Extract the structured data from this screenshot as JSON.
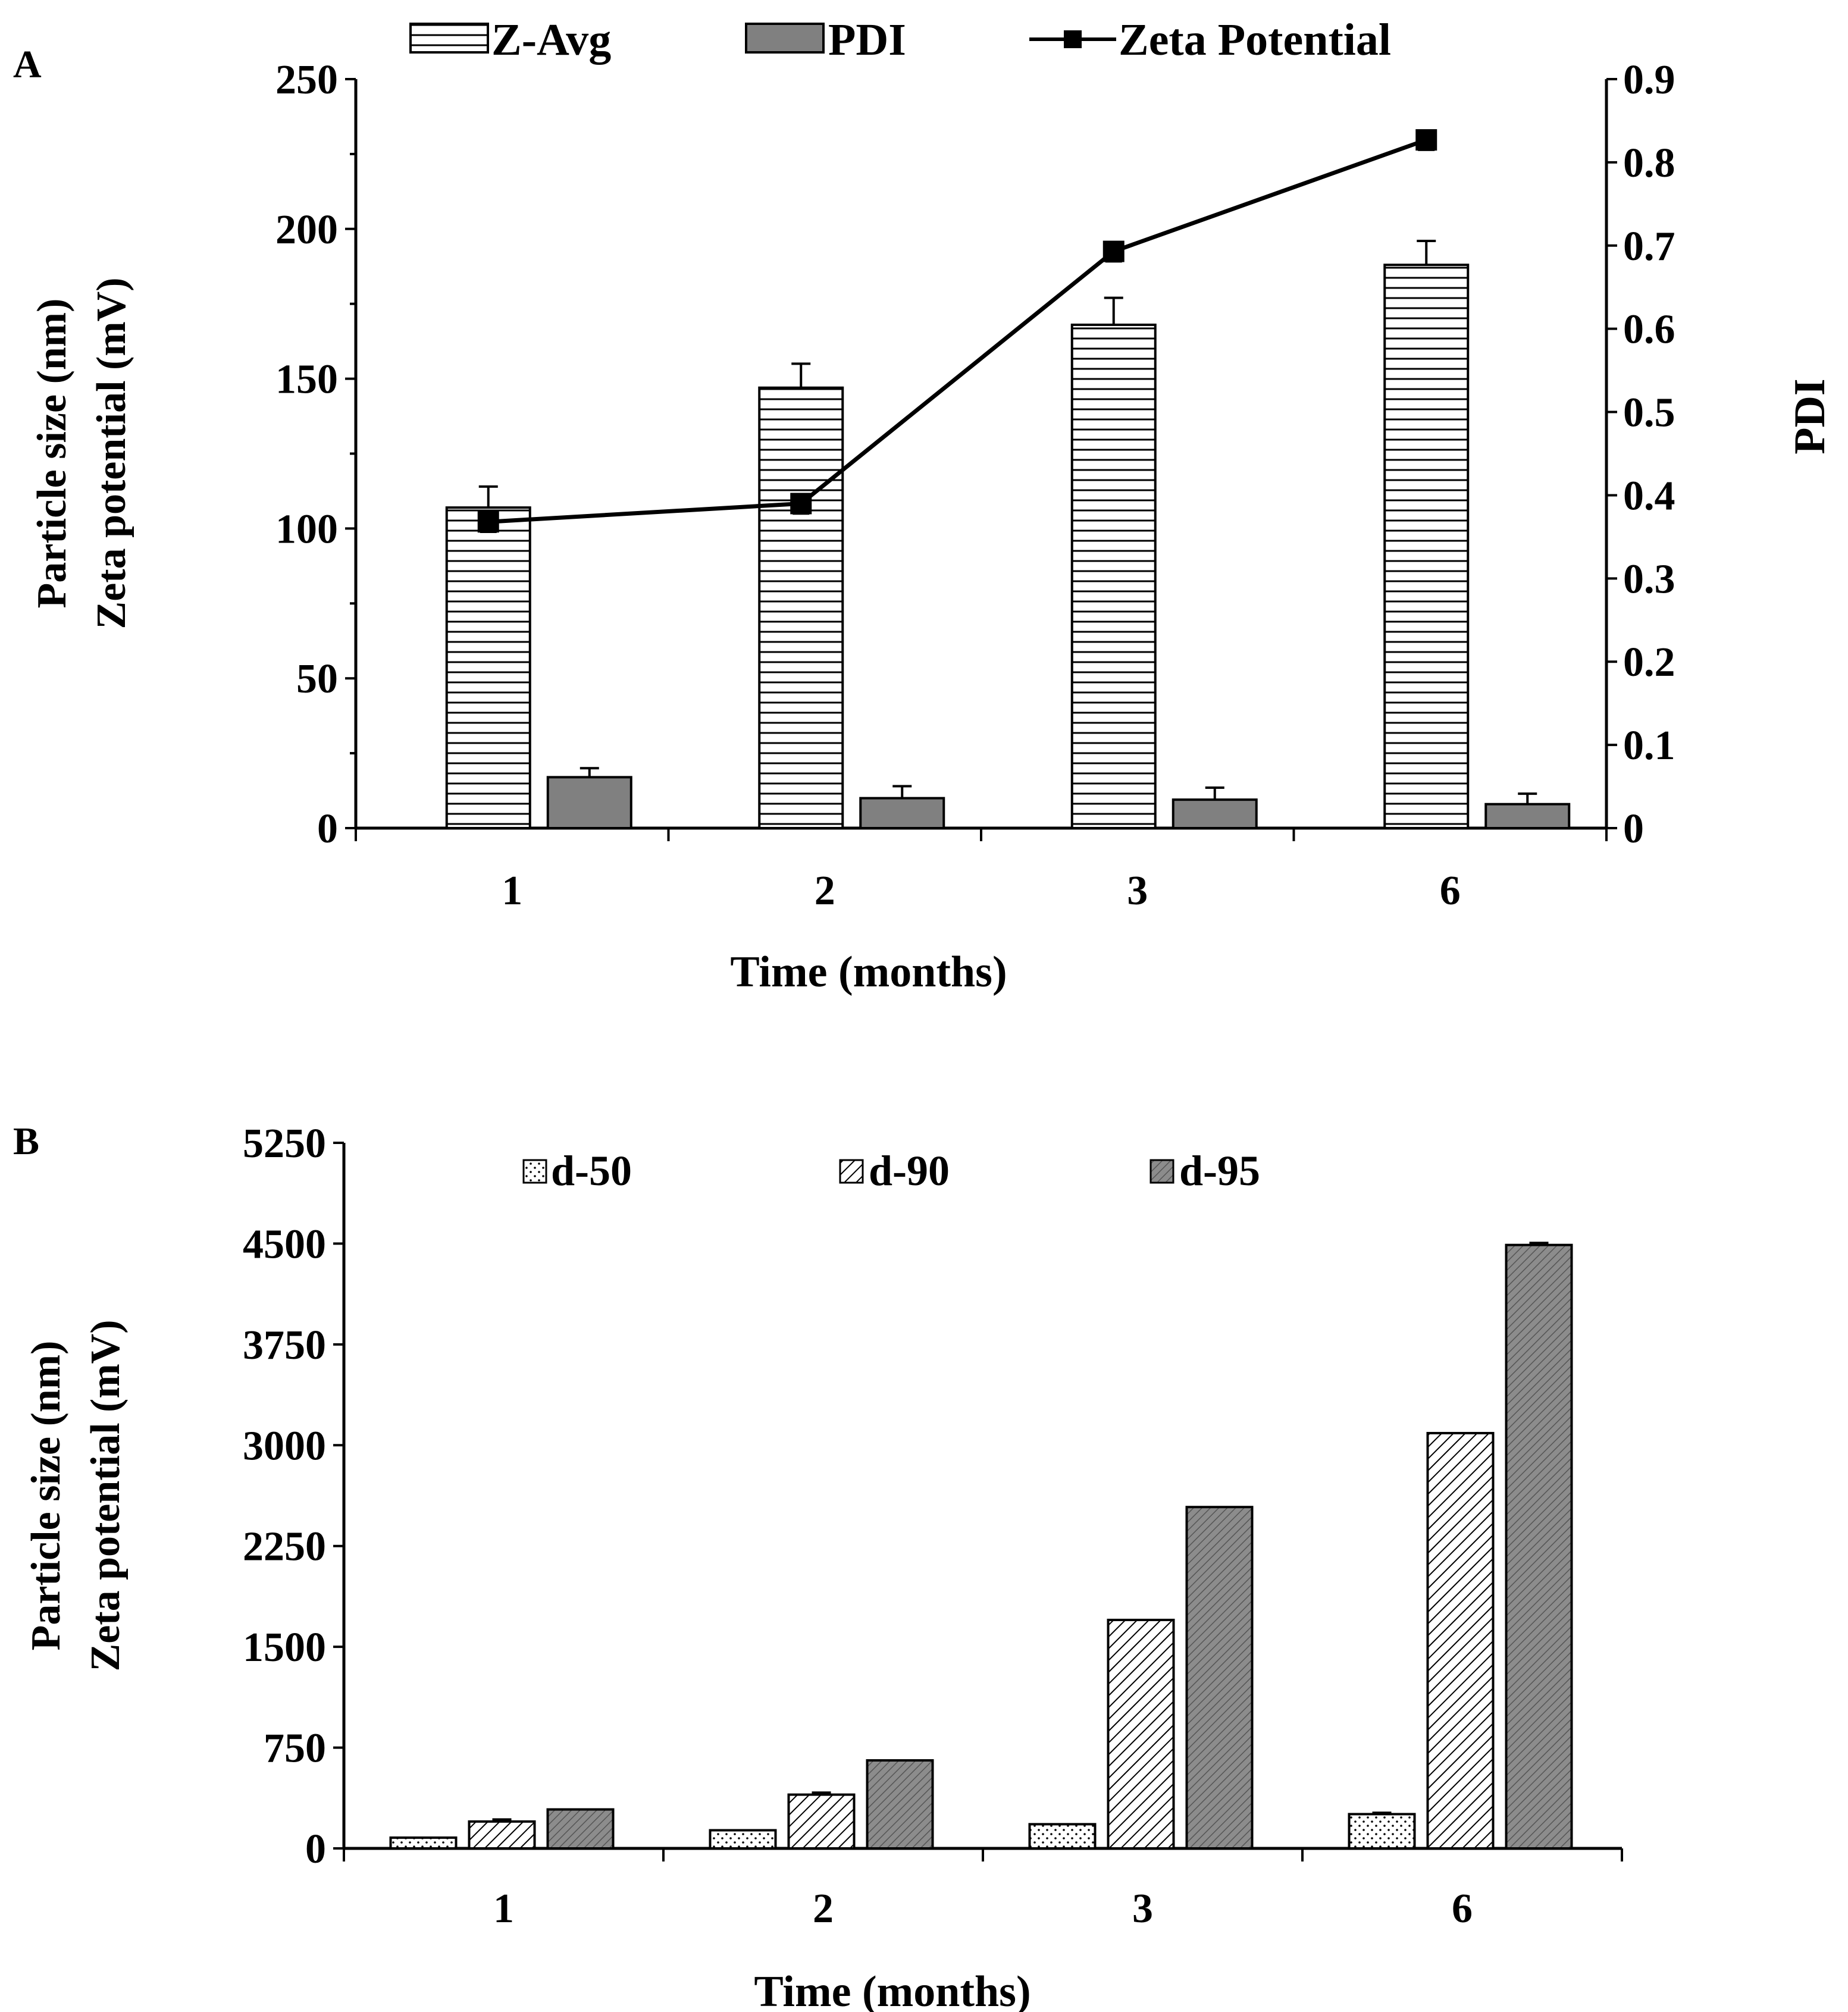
{
  "chart_data": [
    {
      "type": "bar",
      "panel_label": "A",
      "categories": [
        "1",
        "2",
        "3",
        "6"
      ],
      "xlabel": "Time (months)",
      "ylabel_left": [
        "Particle size (nm)",
        "Zeta potential (mV)"
      ],
      "ylabel_right": "PDI",
      "ylim_left": [
        0,
        250
      ],
      "yticks_left": [
        "0",
        "50",
        "100",
        "150",
        "200",
        "250"
      ],
      "ylim_right": [
        0,
        0.9
      ],
      "yticks_right": [
        "0",
        "0.1",
        "0.2",
        "0.3",
        "0.4",
        "0.5",
        "0.6",
        "0.7",
        "0.8",
        "0.9"
      ],
      "legend_position": "top",
      "series": [
        {
          "name": "Z-Avg",
          "kind": "bar",
          "axis": "left",
          "pattern": "horizontal-lines",
          "values": [
            107,
            147,
            168,
            188
          ],
          "errors": [
            7,
            8,
            9,
            8
          ]
        },
        {
          "name": "PDI",
          "kind": "bar",
          "axis": "left",
          "pattern": "solid-gray",
          "values": [
            17,
            10,
            9.5,
            8
          ],
          "errors": [
            3,
            4,
            4,
            3.5
          ]
        },
        {
          "name": "Zeta Potential",
          "kind": "line",
          "axis": "right",
          "marker": "square",
          "values": [
            0.368,
            0.39,
            0.693,
            0.827
          ],
          "errors": [
            0.012,
            0.012,
            0.012,
            0.012
          ]
        }
      ]
    },
    {
      "type": "bar",
      "panel_label": "B",
      "categories": [
        "1",
        "2",
        "3",
        "6"
      ],
      "xlabel": "Time (months)",
      "ylabel_left": [
        "Particle size (nm)",
        "Zeta potential (mV)"
      ],
      "ylim": [
        0,
        5250
      ],
      "yticks": [
        "0",
        "750",
        "1500",
        "2250",
        "3000",
        "3750",
        "4500",
        "5250"
      ],
      "legend_position": "top",
      "series": [
        {
          "name": "d-50",
          "pattern": "dots",
          "values": [
            80,
            135,
            180,
            255
          ],
          "errors": [
            0,
            0,
            0,
            10
          ]
        },
        {
          "name": "d-90",
          "pattern": "diagonal-lines",
          "values": [
            200,
            400,
            1700,
            3090
          ],
          "errors": [
            15,
            15,
            0,
            0
          ]
        },
        {
          "name": "d-95",
          "pattern": "dark-hatch",
          "values": [
            290,
            655,
            2540,
            4490
          ],
          "errors": [
            0,
            0,
            0,
            15
          ]
        }
      ]
    }
  ]
}
